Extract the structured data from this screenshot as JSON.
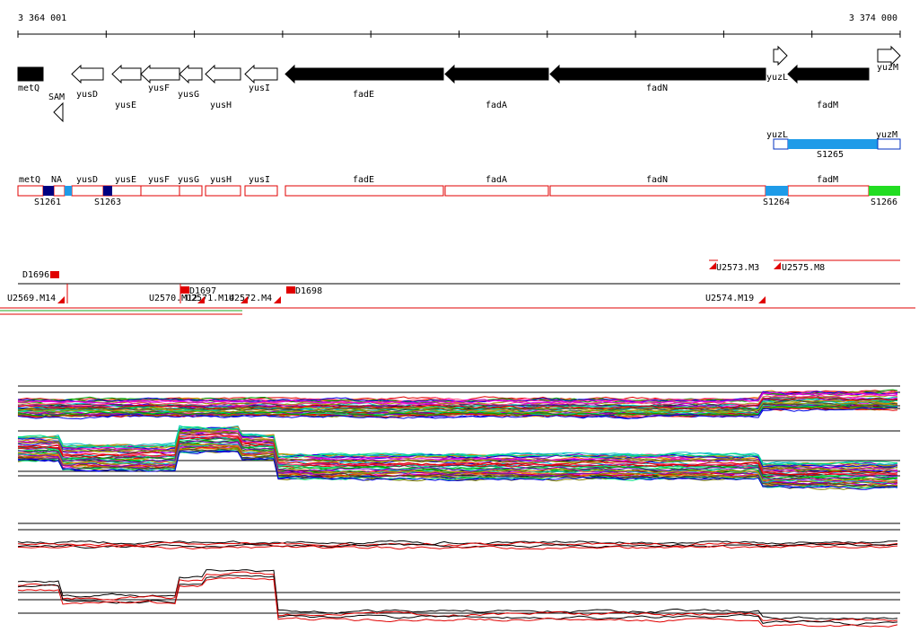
{
  "header": {
    "start": "3 364 001",
    "end": "3 374 000"
  },
  "genes": [
    {
      "label": "metQ"
    },
    {
      "label": "SAM"
    },
    {
      "label": "yusD"
    },
    {
      "label": "yusE"
    },
    {
      "label": "yusF"
    },
    {
      "label": "yusG"
    },
    {
      "label": "yusH"
    },
    {
      "label": "yusI"
    },
    {
      "label": "fadE"
    },
    {
      "label": "fadA"
    },
    {
      "label": "fadN"
    },
    {
      "label": "yuzL"
    },
    {
      "label": "fadM"
    },
    {
      "label": "yuzM"
    }
  ],
  "operon": {
    "labels": [
      "yuzL",
      "yuzM"
    ],
    "name": "S1265"
  },
  "segments": {
    "labels": [
      "metQ",
      "NA",
      "yusD",
      "yusE",
      "yusF",
      "yusG",
      "yusH",
      "yusI",
      "fadE",
      "fadA",
      "fadN",
      "fadM"
    ],
    "sites": [
      "S1261",
      "S1263",
      "S1264",
      "S1266"
    ]
  },
  "transcripts": [
    "D1696",
    "U2569.M14",
    "D1697",
    "U2570.M12",
    "U2571.M14",
    "U2572.M4",
    "D1698",
    "U2573.M3",
    "U2575.M8",
    "U2574.M19"
  ]
}
